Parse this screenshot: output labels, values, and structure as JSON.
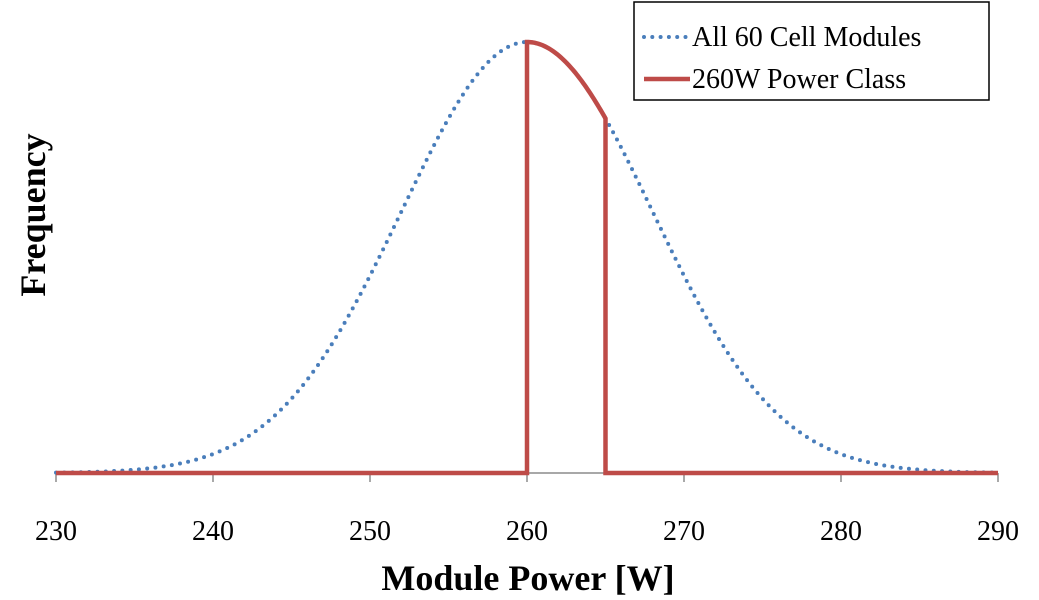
{
  "chart_data": {
    "type": "line",
    "xlabel": "Module Power [W]",
    "ylabel": "Frequency",
    "xlim": [
      230,
      290
    ],
    "ylim": [
      0,
      1
    ],
    "xticks": [
      "230",
      "240",
      "250",
      "260",
      "270",
      "280",
      "290"
    ],
    "xtick_values": [
      230,
      240,
      250,
      260,
      270,
      280,
      290
    ],
    "grid": false,
    "legend_position": "top-right",
    "series": [
      {
        "name": "All 60 Cell Modules",
        "style": "dotted",
        "color": "#4a7ebb",
        "distribution": "normal",
        "mean": 260,
        "std_dev": 8,
        "x_range": [
          230,
          290
        ]
      },
      {
        "name": "260W Power Class",
        "style": "solid",
        "color": "#be4b48",
        "distribution": "normal-truncated",
        "mean": 260,
        "std_dev": 8,
        "x_range": [
          230,
          290
        ],
        "window": [
          260,
          265
        ]
      }
    ]
  }
}
